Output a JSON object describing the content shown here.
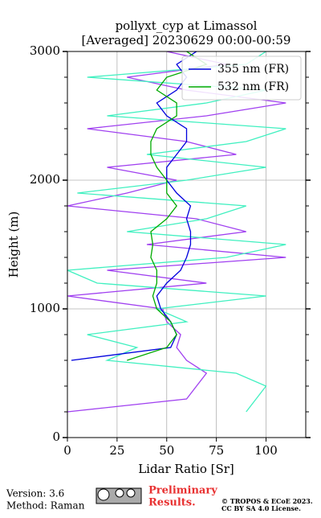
{
  "chart_data": {
    "type": "line",
    "title": [
      "pollyxt_cyp at Limassol",
      "[Averaged] 20230629 00:00-00:59"
    ],
    "x_label": "Lidar Ratio [Sr]",
    "y_label": "Height (m)",
    "y": [
      200,
      300,
      400,
      500,
      600,
      700,
      800,
      900,
      1000,
      1100,
      1200,
      1300,
      1400,
      1500,
      1600,
      1700,
      1800,
      1900,
      2000,
      2100,
      2200,
      2300,
      2400,
      2500,
      2600,
      2700,
      2800,
      2900,
      3000
    ],
    "series": [
      {
        "color": "#a040f0",
        "values": [
          0,
          60,
          65,
          70,
          60,
          55,
          57,
          50,
          48,
          0,
          70,
          20,
          110,
          40,
          90,
          65,
          0,
          30,
          55,
          20,
          85,
          60,
          10,
          70,
          110,
          60,
          30,
          80,
          50
        ]
      },
      {
        "color": "#40f0c0",
        "values": [
          90,
          95,
          100,
          85,
          20,
          35,
          10,
          60,
          45,
          100,
          15,
          0,
          80,
          110,
          30,
          70,
          90,
          5,
          60,
          100,
          40,
          90,
          110,
          20,
          70,
          100,
          10,
          90,
          100
        ]
      },
      {
        "name": "355 nm (FR)",
        "color": "#0000dd",
        "values": [
          null,
          null,
          null,
          null,
          2,
          52,
          55,
          52,
          47,
          45,
          50,
          57,
          60,
          62,
          62,
          60,
          62,
          55,
          50,
          50,
          55,
          60,
          60,
          50,
          45,
          55,
          60,
          55,
          65
        ]
      },
      {
        "name": "532 nm (FR)",
        "color": "#00aa00",
        "values": [
          null,
          null,
          null,
          null,
          30,
          50,
          55,
          52,
          45,
          43,
          45,
          45,
          42,
          43,
          42,
          50,
          55,
          50,
          50,
          45,
          42,
          42,
          45,
          55,
          55,
          45,
          50,
          70,
          60
        ]
      }
    ],
    "xlim": [
      0,
      120
    ],
    "ylim": [
      0,
      3000
    ],
    "xticks": [
      0,
      25,
      50,
      75,
      100
    ],
    "yticks": [
      0,
      1000,
      2000,
      3000
    ],
    "yminorticks": [
      200,
      400,
      600,
      800,
      1200,
      1400,
      1600,
      1800,
      2200,
      2400,
      2600,
      2800
    ],
    "grid": true,
    "legend": "upper right"
  },
  "footer": {
    "version": "Version: 3.6",
    "method": "Method: Raman",
    "preliminary": [
      "Preliminary",
      "Results."
    ],
    "copyright": [
      "© TROPOS & ECoE 2023.",
      "CC BY SA 4.0 License."
    ]
  }
}
